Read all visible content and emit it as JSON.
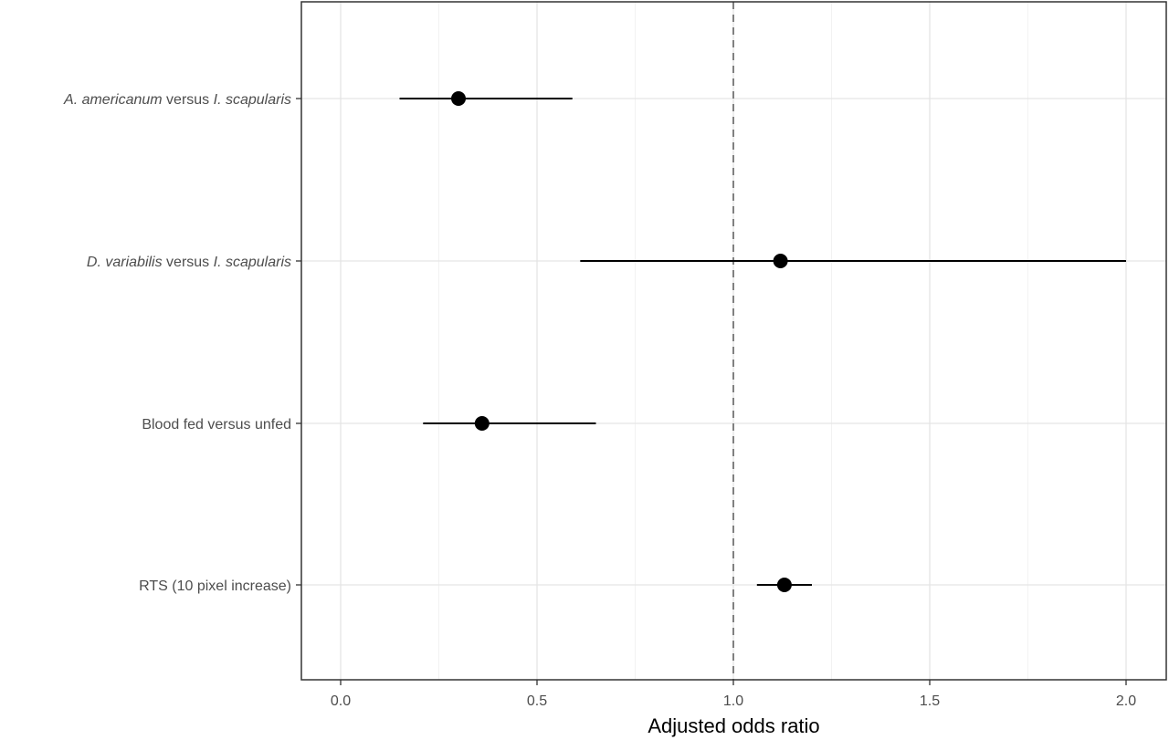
{
  "chart_data": {
    "type": "scatter",
    "subtype": "forest-plot",
    "title": "",
    "xlabel": "Adjusted odds ratio",
    "ylabel": "",
    "xlim": [
      -0.1,
      2.1
    ],
    "xticks": [
      0.0,
      0.5,
      1.0,
      1.5,
      2.0
    ],
    "xtick_labels": [
      "0.0",
      "0.5",
      "1.0",
      "1.5",
      "2.0"
    ],
    "reference_line": 1.0,
    "grid": true,
    "rows": [
      {
        "label_parts": [
          {
            "text": "A. americanum",
            "italic": true
          },
          {
            "text": " versus ",
            "italic": false
          },
          {
            "text": "I. scapularis",
            "italic": true
          }
        ],
        "estimate": 0.3,
        "lower": 0.15,
        "upper": 0.59
      },
      {
        "label_parts": [
          {
            "text": "D. variabilis",
            "italic": true
          },
          {
            "text": " versus ",
            "italic": false
          },
          {
            "text": "I. scapularis",
            "italic": true
          }
        ],
        "estimate": 1.12,
        "lower": 0.61,
        "upper": 2.0
      },
      {
        "label_parts": [
          {
            "text": "Blood fed versus unfed",
            "italic": false
          }
        ],
        "estimate": 0.36,
        "lower": 0.21,
        "upper": 0.65
      },
      {
        "label_parts": [
          {
            "text": "RTS (10 pixel increase)",
            "italic": false
          }
        ],
        "estimate": 1.13,
        "lower": 1.06,
        "upper": 1.2
      }
    ],
    "colors": {
      "point": "#000000",
      "grid_major": "#e5e5e5",
      "grid_minor": "#f2f2f2",
      "reference": "#808080",
      "panel_border": "#333333"
    }
  }
}
